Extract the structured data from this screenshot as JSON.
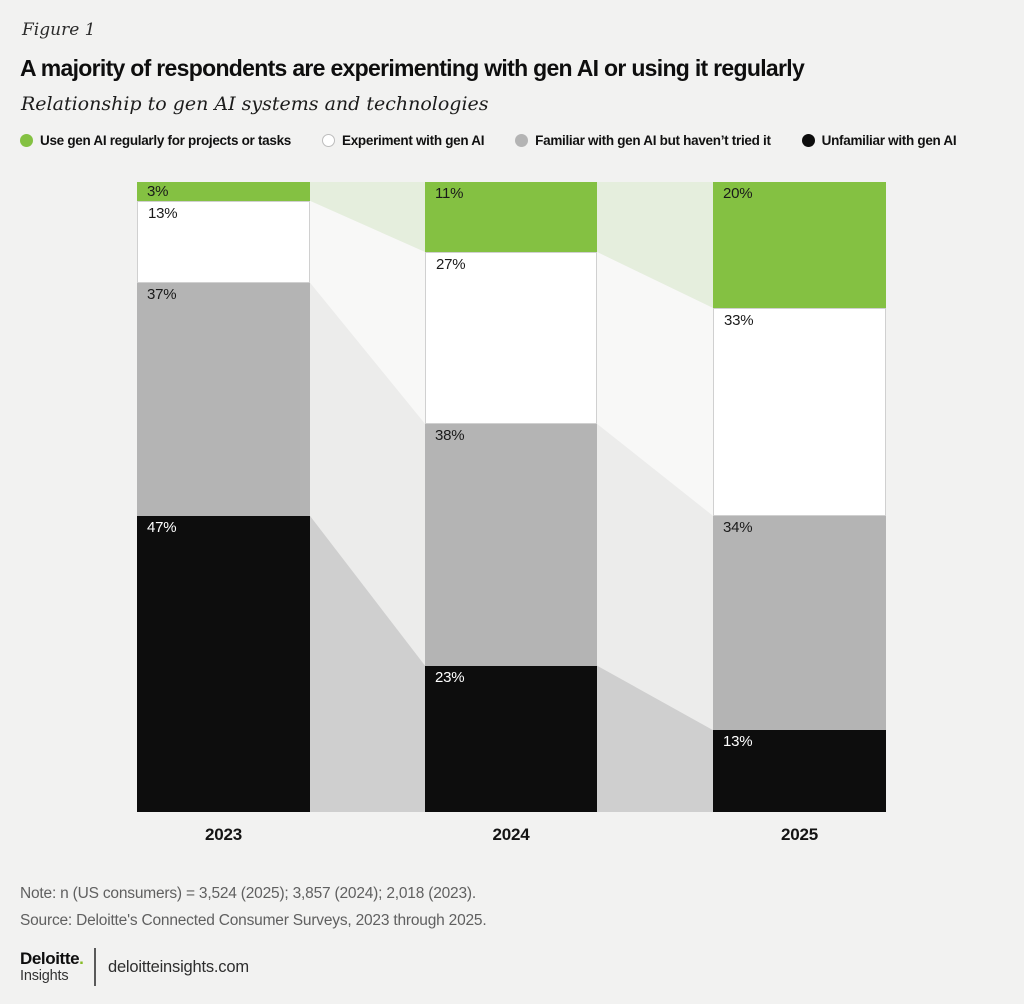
{
  "figure_label": "Figure 1",
  "title": "A majority of respondents are experimenting with gen AI or using it regularly",
  "subtitle": "Relationship to gen AI systems and technologies",
  "colors": {
    "background": "#f2f2f1",
    "accent_green": "#84c142",
    "brand_green": "#86bc25",
    "note_text": "#606060"
  },
  "chart_data": {
    "type": "bar",
    "stacked": true,
    "title": "A majority of respondents are experimenting with gen AI or using it regularly",
    "subtitle": "Relationship to gen AI systems and technologies",
    "xlabel": "",
    "ylabel": "",
    "unit": "%",
    "value_suffix": "%",
    "flow_connectors": true,
    "legend_position": "top",
    "categories": [
      "2023",
      "2024",
      "2025"
    ],
    "series": [
      {
        "name": "Use gen AI regularly for projects or tasks",
        "color": "#84c142",
        "ribbon_color": "#e5eedd",
        "label_color": "#1a1a1a",
        "values": [
          3,
          11,
          20
        ]
      },
      {
        "name": "Experiment with gen AI",
        "color": "#ffffff",
        "border_color": "#d0d0d0",
        "ribbon_color": "#f8f8f7",
        "label_color": "#1a1a1a",
        "values": [
          13,
          27,
          33
        ]
      },
      {
        "name": "Familiar with gen AI but haven’t tried it",
        "color": "#b4b4b4",
        "ribbon_color": "#ececeb",
        "label_color": "#1a1a1a",
        "values": [
          37,
          38,
          34
        ]
      },
      {
        "name": "Unfamiliar with gen AI",
        "color": "#0d0d0d",
        "ribbon_color": "#cfcfcf",
        "label_color": "#ffffff",
        "values": [
          47,
          23,
          13
        ]
      }
    ]
  },
  "note": "Note: n (US consumers) = 3,524 (2025); 3,857 (2024); 2,018 (2023).",
  "source": "Source: Deloitte's Connected Consumer Surveys, 2023 through 2025.",
  "footer": {
    "brand": "Deloitte",
    "brand_dot": ".",
    "brand_sub": "Insights",
    "site": "deloitteinsights.com"
  }
}
